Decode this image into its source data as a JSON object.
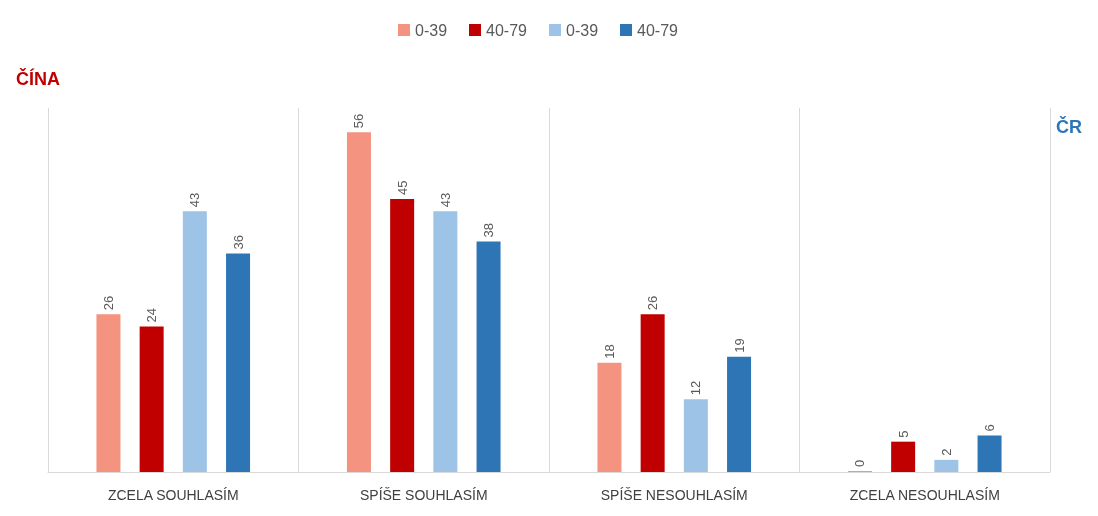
{
  "chart_data": {
    "type": "bar",
    "categories": [
      "ZCELA SOUHLASÍM",
      "SPÍŠE SOUHLASÍM",
      "SPÍŠE NESOUHLASÍM",
      "ZCELA NESOUHLASÍM"
    ],
    "series": [
      {
        "name": "0-39",
        "color": "#f4937f",
        "values": [
          26,
          56,
          18,
          0
        ]
      },
      {
        "name": "40-79",
        "color": "#c00000",
        "values": [
          24,
          45,
          26,
          5
        ]
      },
      {
        "name": "0-39",
        "color": "#9dc3e6",
        "values": [
          43,
          43,
          12,
          2
        ]
      },
      {
        "name": "40-79",
        "color": "#2e75b6",
        "values": [
          36,
          38,
          19,
          6
        ]
      }
    ],
    "annotations": [
      "ČÍNA",
      "ČR"
    ],
    "data_labels": true,
    "grid": "x",
    "legend": "top"
  }
}
